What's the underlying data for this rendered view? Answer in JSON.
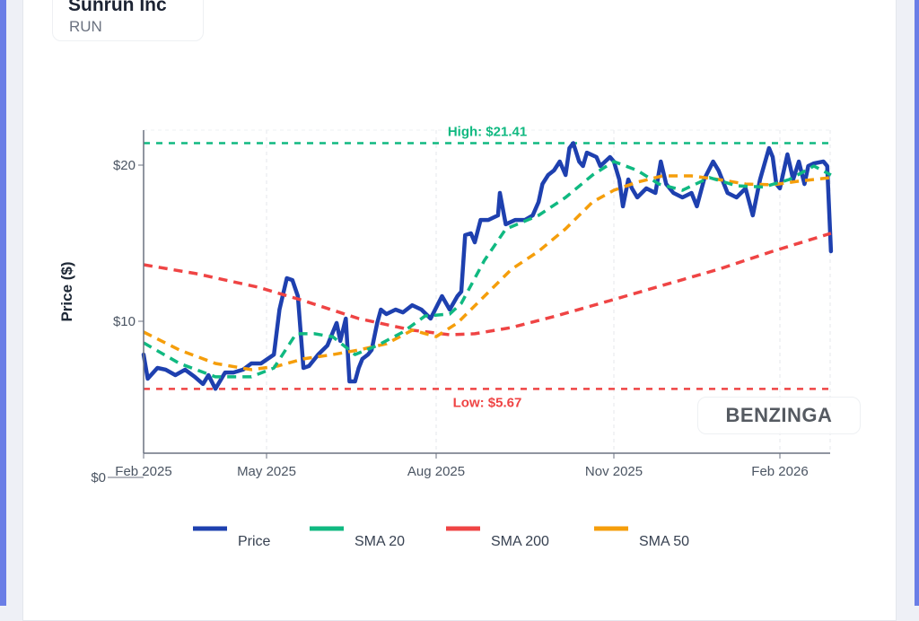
{
  "header": {
    "title": "Sunrun Inc",
    "ticker": "RUN"
  },
  "watermark": "BENZINGA",
  "colors": {
    "price": "#1e40af",
    "sma20": "#10b981",
    "sma200": "#ef4444",
    "sma50": "#f59e0b",
    "accent_border": "#6a7ee6"
  },
  "chart_data": {
    "type": "line",
    "ylabel": "Price ($)",
    "xlabel": "",
    "ylim": [
      0,
      22.2
    ],
    "grid": true,
    "legend_position": "bottom",
    "x_ticks": [
      {
        "date": "2025-02-01",
        "label": "Feb 2025"
      },
      {
        "date": "2025-05-01",
        "label": "May 2025"
      },
      {
        "date": "2025-08-01",
        "label": "Aug 2025"
      },
      {
        "date": "2025-11-01",
        "label": "Nov 2025"
      },
      {
        "date": "2026-02-01",
        "label": "Feb 2026"
      }
    ],
    "y_ticks": [
      {
        "value": 0,
        "label": "$0"
      },
      {
        "value": 10,
        "label": "$10"
      },
      {
        "value": 20,
        "label": "$20"
      }
    ],
    "annotations": {
      "high": {
        "value": 21.41,
        "label": "High: $21.41"
      },
      "low": {
        "value": 5.67,
        "label": "Low: $5.67"
      }
    },
    "series": [
      {
        "name": "Price",
        "color": "#1e40af",
        "style": "solid",
        "points": [
          [
            "2025-02-01",
            7.87
          ],
          [
            "2025-02-04",
            6.32
          ],
          [
            "2025-02-11",
            7.01
          ],
          [
            "2025-02-17",
            6.9
          ],
          [
            "2025-02-24",
            6.55
          ],
          [
            "2025-03-03",
            6.9
          ],
          [
            "2025-03-10",
            6.44
          ],
          [
            "2025-03-16",
            5.98
          ],
          [
            "2025-03-20",
            6.55
          ],
          [
            "2025-03-25",
            5.67
          ],
          [
            "2025-04-01",
            6.72
          ],
          [
            "2025-04-07",
            6.72
          ],
          [
            "2025-04-14",
            6.9
          ],
          [
            "2025-04-20",
            7.3
          ],
          [
            "2025-04-27",
            7.3
          ],
          [
            "2025-05-05",
            7.87
          ],
          [
            "2025-05-08",
            10.75
          ],
          [
            "2025-05-12",
            12.76
          ],
          [
            "2025-05-15",
            12.64
          ],
          [
            "2025-05-18",
            11.61
          ],
          [
            "2025-05-21",
            7.01
          ],
          [
            "2025-05-24",
            7.13
          ],
          [
            "2025-05-29",
            7.87
          ],
          [
            "2025-06-03",
            8.45
          ],
          [
            "2025-06-08",
            9.89
          ],
          [
            "2025-06-10",
            8.74
          ],
          [
            "2025-06-13",
            10.17
          ],
          [
            "2025-06-15",
            6.15
          ],
          [
            "2025-06-18",
            6.15
          ],
          [
            "2025-06-20",
            7.01
          ],
          [
            "2025-06-22",
            7.59
          ],
          [
            "2025-06-25",
            7.87
          ],
          [
            "2025-06-27",
            8.16
          ],
          [
            "2025-06-30",
            9.89
          ],
          [
            "2025-07-02",
            10.75
          ],
          [
            "2025-07-05",
            10.46
          ],
          [
            "2025-07-10",
            10.75
          ],
          [
            "2025-07-14",
            10.57
          ],
          [
            "2025-07-19",
            11.03
          ],
          [
            "2025-07-24",
            10.75
          ],
          [
            "2025-07-29",
            10.17
          ],
          [
            "2025-08-04",
            11.61
          ],
          [
            "2025-08-08",
            10.75
          ],
          [
            "2025-08-12",
            11.61
          ],
          [
            "2025-08-14",
            11.9
          ],
          [
            "2025-08-16",
            15.52
          ],
          [
            "2025-08-19",
            15.63
          ],
          [
            "2025-08-21",
            15.06
          ],
          [
            "2025-08-24",
            16.49
          ],
          [
            "2025-08-28",
            16.49
          ],
          [
            "2025-09-02",
            16.78
          ],
          [
            "2025-09-03",
            18.22
          ],
          [
            "2025-09-06",
            16.21
          ],
          [
            "2025-09-11",
            16.49
          ],
          [
            "2025-09-16",
            16.49
          ],
          [
            "2025-09-20",
            16.78
          ],
          [
            "2025-09-23",
            17.64
          ],
          [
            "2025-09-25",
            18.79
          ],
          [
            "2025-09-28",
            19.37
          ],
          [
            "2025-10-01",
            19.66
          ],
          [
            "2025-10-04",
            20.23
          ],
          [
            "2025-10-07",
            19.37
          ],
          [
            "2025-10-09",
            21.09
          ],
          [
            "2025-10-11",
            21.41
          ],
          [
            "2025-10-14",
            20.23
          ],
          [
            "2025-10-16",
            19.94
          ],
          [
            "2025-10-18",
            20.8
          ],
          [
            "2025-10-23",
            20.52
          ],
          [
            "2025-10-25",
            19.94
          ],
          [
            "2025-10-30",
            20.52
          ],
          [
            "2025-11-01",
            20.23
          ],
          [
            "2025-11-04",
            19.08
          ],
          [
            "2025-11-06",
            17.36
          ],
          [
            "2025-11-09",
            19.08
          ],
          [
            "2025-11-11",
            18.51
          ],
          [
            "2025-11-14",
            17.93
          ],
          [
            "2025-11-19",
            18.51
          ],
          [
            "2025-11-24",
            18.22
          ],
          [
            "2025-11-27",
            20.23
          ],
          [
            "2025-11-30",
            18.79
          ],
          [
            "2025-12-04",
            18.22
          ],
          [
            "2025-12-09",
            17.93
          ],
          [
            "2025-12-14",
            18.22
          ],
          [
            "2025-12-17",
            17.36
          ],
          [
            "2025-12-21",
            19.08
          ],
          [
            "2025-12-26",
            20.23
          ],
          [
            "2025-12-29",
            19.66
          ],
          [
            "2026-01-03",
            18.22
          ],
          [
            "2026-01-08",
            17.93
          ],
          [
            "2026-01-13",
            18.51
          ],
          [
            "2026-01-17",
            16.78
          ],
          [
            "2026-01-21",
            19.08
          ],
          [
            "2026-01-26",
            21.09
          ],
          [
            "2026-01-28",
            20.52
          ],
          [
            "2026-01-30",
            18.79
          ],
          [
            "2026-02-01",
            18.51
          ],
          [
            "2026-02-05",
            20.69
          ],
          [
            "2026-02-08",
            19.08
          ],
          [
            "2026-02-11",
            20.23
          ],
          [
            "2026-02-14",
            18.79
          ],
          [
            "2026-02-16",
            19.94
          ],
          [
            "2026-02-19",
            20.11
          ],
          [
            "2026-02-24",
            20.23
          ],
          [
            "2026-02-26",
            19.94
          ],
          [
            "2026-02-28",
            14.48
          ]
        ]
      },
      {
        "name": "SMA 20",
        "color": "#10b981",
        "style": "dashed",
        "points": [
          [
            "2025-02-01",
            8.62
          ],
          [
            "2025-02-27",
            7.3
          ],
          [
            "2025-03-25",
            6.44
          ],
          [
            "2025-04-20",
            6.44
          ],
          [
            "2025-05-05",
            7.01
          ],
          [
            "2025-05-17",
            9.2
          ],
          [
            "2025-05-27",
            9.2
          ],
          [
            "2025-06-06",
            9.0
          ],
          [
            "2025-06-18",
            7.87
          ],
          [
            "2025-06-30",
            8.45
          ],
          [
            "2025-07-14",
            9.31
          ],
          [
            "2025-07-26",
            10.34
          ],
          [
            "2025-08-08",
            10.46
          ],
          [
            "2025-08-14",
            11.15
          ],
          [
            "2025-08-26",
            13.9
          ],
          [
            "2025-09-06",
            15.9
          ],
          [
            "2025-09-23",
            16.78
          ],
          [
            "2025-10-07",
            17.93
          ],
          [
            "2025-10-21",
            19.37
          ],
          [
            "2025-11-01",
            20.23
          ],
          [
            "2025-11-14",
            19.66
          ],
          [
            "2025-11-26",
            18.79
          ],
          [
            "2025-12-09",
            18.39
          ],
          [
            "2025-12-24",
            19.2
          ],
          [
            "2026-01-08",
            18.68
          ],
          [
            "2026-01-23",
            18.6
          ],
          [
            "2026-02-06",
            19.08
          ],
          [
            "2026-02-19",
            19.94
          ],
          [
            "2026-02-28",
            19.37
          ]
        ]
      },
      {
        "name": "SMA 200",
        "color": "#ef4444",
        "style": "dashed",
        "points": [
          [
            "2025-02-01",
            13.62
          ],
          [
            "2025-03-11",
            13.05
          ],
          [
            "2025-04-25",
            12.18
          ],
          [
            "2025-05-21",
            11.32
          ],
          [
            "2025-06-20",
            10.17
          ],
          [
            "2025-07-19",
            9.43
          ],
          [
            "2025-08-08",
            9.14
          ],
          [
            "2025-08-21",
            9.2
          ],
          [
            "2025-09-09",
            9.6
          ],
          [
            "2025-10-02",
            10.34
          ],
          [
            "2025-10-30",
            11.32
          ],
          [
            "2025-11-28",
            12.3
          ],
          [
            "2025-12-29",
            13.33
          ],
          [
            "2026-01-28",
            14.48
          ],
          [
            "2026-02-28",
            15.63
          ]
        ]
      },
      {
        "name": "SMA 50",
        "color": "#f59e0b",
        "style": "dashed",
        "points": [
          [
            "2025-02-01",
            9.31
          ],
          [
            "2025-02-27",
            8.16
          ],
          [
            "2025-03-25",
            7.3
          ],
          [
            "2025-04-20",
            6.9
          ],
          [
            "2025-05-07",
            7.13
          ],
          [
            "2025-05-21",
            7.59
          ],
          [
            "2025-06-06",
            7.87
          ],
          [
            "2025-06-20",
            8.16
          ],
          [
            "2025-07-05",
            8.56
          ],
          [
            "2025-07-19",
            9.43
          ],
          [
            "2025-08-01",
            9.02
          ],
          [
            "2025-08-12",
            9.89
          ],
          [
            "2025-08-26",
            11.61
          ],
          [
            "2025-09-09",
            13.33
          ],
          [
            "2025-09-23",
            14.48
          ],
          [
            "2025-10-07",
            15.92
          ],
          [
            "2025-10-21",
            17.64
          ],
          [
            "2025-11-01",
            18.39
          ],
          [
            "2025-11-14",
            18.91
          ],
          [
            "2025-11-28",
            19.31
          ],
          [
            "2025-12-14",
            19.31
          ],
          [
            "2025-12-29",
            19.08
          ],
          [
            "2026-01-13",
            18.79
          ],
          [
            "2026-01-28",
            18.74
          ],
          [
            "2026-02-11",
            18.97
          ],
          [
            "2026-02-28",
            19.2
          ]
        ]
      }
    ]
  }
}
